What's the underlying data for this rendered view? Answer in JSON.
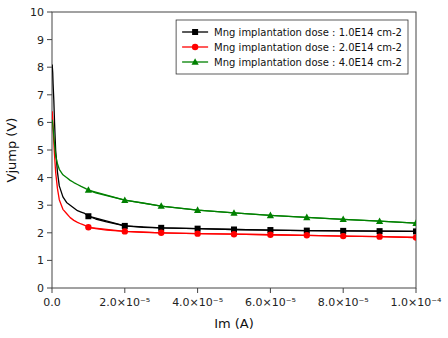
{
  "chart_data": {
    "type": "line",
    "xlabel": "Im (A)",
    "ylabel": "Vjump (V)",
    "xlim": [
      0,
      0.0001
    ],
    "ylim": [
      0,
      10.0
    ],
    "xticks": [
      {
        "value": 0.0,
        "label": "0.0"
      },
      {
        "value": 2e-05,
        "label": "2.0×10⁻⁵"
      },
      {
        "value": 4e-05,
        "label": "4.0×10⁻⁵"
      },
      {
        "value": 6e-05,
        "label": "6.0×10⁻⁵"
      },
      {
        "value": 8e-05,
        "label": "8.0×10⁻⁵"
      },
      {
        "value": 0.0001,
        "label": "1.0×10⁻⁴"
      }
    ],
    "yticks": [
      0,
      1,
      2,
      3,
      4,
      5,
      6,
      7,
      8,
      9,
      10
    ],
    "legend": "upper right",
    "series": [
      {
        "color": "black",
        "x": [
          5e-08,
          1e-07,
          2e-07,
          3e-07,
          5e-07,
          7e-07,
          1e-06,
          1.5e-06,
          2e-06,
          3e-06,
          4e-06,
          5e-06,
          6e-06,
          7e-06,
          8e-06,
          9e-06,
          1e-05,
          1.2e-05,
          1.5e-05,
          2e-05,
          2.5e-05,
          3e-05,
          4e-05,
          5e-05,
          6e-05,
          7e-05,
          8e-05,
          9e-05,
          0.0001
        ],
        "values": [
          8.1,
          8.0,
          7.8,
          7.4,
          6.8,
          6.0,
          5.0,
          4.2,
          3.7,
          3.3,
          3.1,
          3.0,
          2.9,
          2.8,
          2.75,
          2.7,
          2.6,
          2.5,
          2.4,
          2.25,
          2.2,
          2.18,
          2.15,
          2.12,
          2.1,
          2.08,
          2.07,
          2.06,
          2.05
        ]
      },
      {
        "color": "red",
        "x": [
          5e-08,
          1e-07,
          2e-07,
          3e-07,
          5e-07,
          7e-07,
          1e-06,
          1.5e-06,
          2e-06,
          3e-06,
          4e-06,
          5e-06,
          6e-06,
          7e-06,
          8e-06,
          9e-06,
          1e-05,
          1.2e-05,
          1.5e-05,
          2e-05,
          2.5e-05,
          3e-05,
          4e-05,
          5e-05,
          6e-05,
          7e-05,
          8e-05,
          9e-05,
          0.0001
        ],
        "values": [
          6.4,
          6.3,
          6.1,
          5.8,
          5.3,
          4.8,
          4.2,
          3.6,
          3.2,
          2.85,
          2.7,
          2.55,
          2.45,
          2.38,
          2.32,
          2.27,
          2.2,
          2.15,
          2.1,
          2.05,
          2.02,
          2.0,
          1.97,
          1.95,
          1.93,
          1.91,
          1.88,
          1.86,
          1.83
        ]
      },
      {
        "color": "green",
        "x": [
          5e-08,
          1e-07,
          2e-07,
          3e-07,
          5e-07,
          7e-07,
          1e-06,
          1.5e-06,
          2e-06,
          3e-06,
          4e-06,
          5e-06,
          6e-06,
          7e-06,
          8e-06,
          9e-06,
          1e-05,
          1.2e-05,
          1.5e-05,
          2e-05,
          2.5e-05,
          3e-05,
          4e-05,
          5e-05,
          6e-05,
          7e-05,
          8e-05,
          9e-05,
          0.0001
        ],
        "values": [
          6.1,
          6.05,
          5.95,
          5.8,
          5.5,
          5.2,
          4.8,
          4.5,
          4.3,
          4.1,
          4.0,
          3.9,
          3.82,
          3.75,
          3.68,
          3.62,
          3.55,
          3.45,
          3.35,
          3.18,
          3.08,
          2.97,
          2.82,
          2.72,
          2.63,
          2.56,
          2.49,
          2.42,
          2.35
        ]
      },
      {
        "name": "Mng implantation dose : 1.0E14 cm-2",
        "color": "black",
        "marker": "square",
        "x": [
          1e-05,
          2e-05,
          3e-05,
          4e-05,
          5e-05,
          6e-05,
          7e-05,
          8e-05,
          9e-05,
          0.0001
        ],
        "values": [
          2.6,
          2.25,
          2.18,
          2.15,
          2.12,
          2.1,
          2.08,
          2.07,
          2.06,
          2.05
        ]
      },
      {
        "name": "Mng implantation dose : 2.0E14 cm-2",
        "color": "red",
        "marker": "circle",
        "x": [
          1e-05,
          2e-05,
          3e-05,
          4e-05,
          5e-05,
          6e-05,
          7e-05,
          8e-05,
          9e-05,
          0.0001
        ],
        "values": [
          2.2,
          2.05,
          2.0,
          1.97,
          1.95,
          1.93,
          1.91,
          1.88,
          1.86,
          1.83
        ]
      },
      {
        "name": "Mng implantation dose : 4.0E14 cm-2",
        "color": "green",
        "marker": "triangle",
        "x": [
          1e-05,
          2e-05,
          3e-05,
          4e-05,
          5e-05,
          6e-05,
          7e-05,
          8e-05,
          9e-05,
          0.0001
        ],
        "values": [
          3.55,
          3.18,
          2.97,
          2.82,
          2.72,
          2.63,
          2.56,
          2.49,
          2.42,
          2.35
        ]
      }
    ]
  }
}
